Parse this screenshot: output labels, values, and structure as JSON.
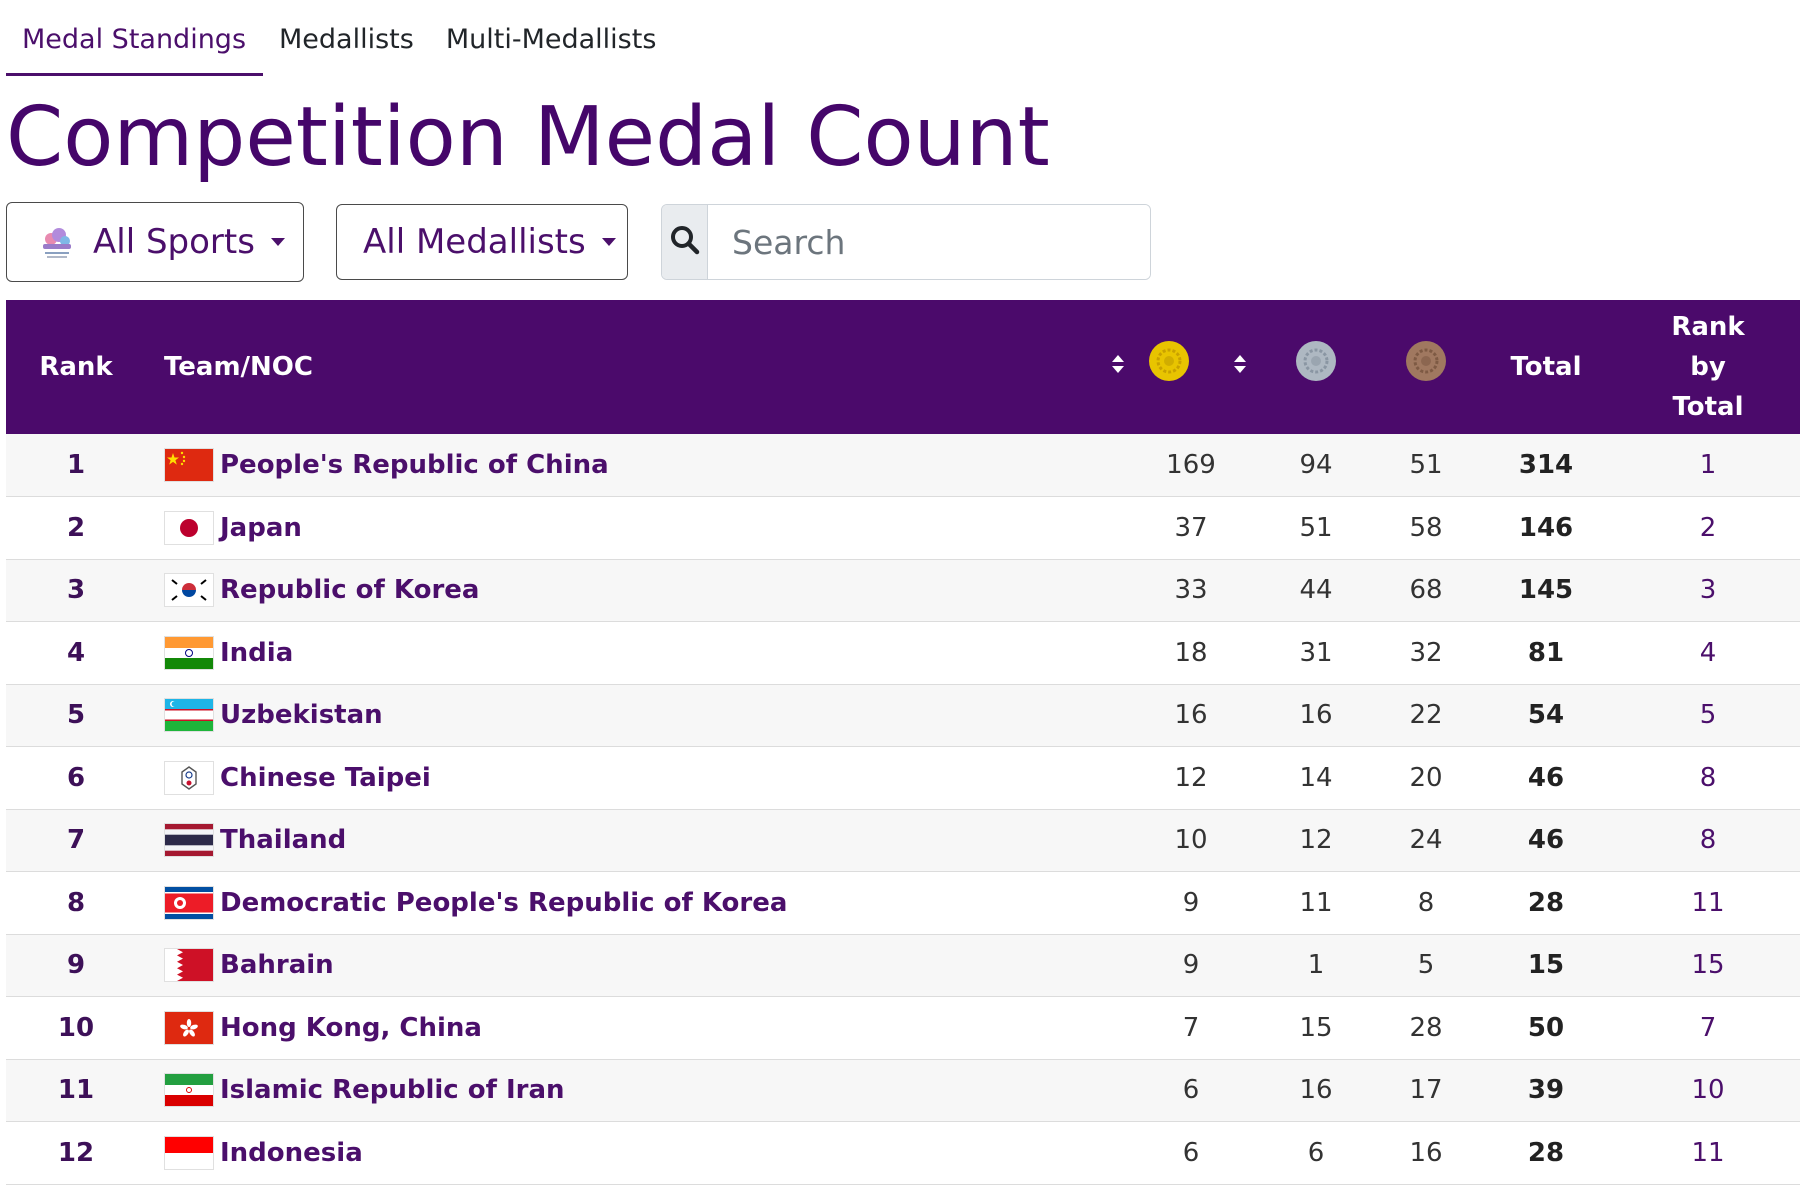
{
  "tabs": [
    {
      "label": "Medal Standings",
      "active": true
    },
    {
      "label": "Medallists",
      "active": false
    },
    {
      "label": "Multi-Medallists",
      "active": false
    }
  ],
  "title": "Competition Medal Count",
  "filters": {
    "sports_label": "All Sports",
    "sports_icon": "games-logo-icon",
    "medallists_label": "All Medallists",
    "search_placeholder": "Search",
    "search_value": ""
  },
  "table": {
    "headers": {
      "rank": "Rank",
      "team": "Team/NOC",
      "gold_icon": "gold-medal-icon",
      "silver_icon": "silver-medal-icon",
      "bronze_icon": "bronze-medal-icon",
      "total": "Total",
      "rank_by_total": [
        "Rank",
        "by",
        "Total"
      ]
    },
    "rows": [
      {
        "rank": "1",
        "team": "People's Republic of China",
        "flag": "china-flag-icon",
        "gold": "169",
        "silver": "94",
        "bronze": "51",
        "total": "314",
        "rank_by_total": "1"
      },
      {
        "rank": "2",
        "team": "Japan",
        "flag": "japan-flag-icon",
        "gold": "37",
        "silver": "51",
        "bronze": "58",
        "total": "146",
        "rank_by_total": "2"
      },
      {
        "rank": "3",
        "team": "Republic of Korea",
        "flag": "korea-flag-icon",
        "gold": "33",
        "silver": "44",
        "bronze": "68",
        "total": "145",
        "rank_by_total": "3"
      },
      {
        "rank": "4",
        "team": "India",
        "flag": "india-flag-icon",
        "gold": "18",
        "silver": "31",
        "bronze": "32",
        "total": "81",
        "rank_by_total": "4"
      },
      {
        "rank": "5",
        "team": "Uzbekistan",
        "flag": "uzbekistan-flag-icon",
        "gold": "16",
        "silver": "16",
        "bronze": "22",
        "total": "54",
        "rank_by_total": "5"
      },
      {
        "rank": "6",
        "team": "Chinese Taipei",
        "flag": "chinese-taipei-flag-icon",
        "gold": "12",
        "silver": "14",
        "bronze": "20",
        "total": "46",
        "rank_by_total": "8"
      },
      {
        "rank": "7",
        "team": "Thailand",
        "flag": "thailand-flag-icon",
        "gold": "10",
        "silver": "12",
        "bronze": "24",
        "total": "46",
        "rank_by_total": "8"
      },
      {
        "rank": "8",
        "team": "Democratic People's Republic of Korea",
        "flag": "dpr-korea-flag-icon",
        "gold": "9",
        "silver": "11",
        "bronze": "8",
        "total": "28",
        "rank_by_total": "11"
      },
      {
        "rank": "9",
        "team": "Bahrain",
        "flag": "bahrain-flag-icon",
        "gold": "9",
        "silver": "1",
        "bronze": "5",
        "total": "15",
        "rank_by_total": "15"
      },
      {
        "rank": "10",
        "team": "Hong Kong, China",
        "flag": "hong-kong-flag-icon",
        "gold": "7",
        "silver": "15",
        "bronze": "28",
        "total": "50",
        "rank_by_total": "7"
      },
      {
        "rank": "11",
        "team": "Islamic Republic of Iran",
        "flag": "iran-flag-icon",
        "gold": "6",
        "silver": "16",
        "bronze": "17",
        "total": "39",
        "rank_by_total": "10"
      },
      {
        "rank": "12",
        "team": "Indonesia",
        "flag": "indonesia-flag-icon",
        "gold": "6",
        "silver": "6",
        "bronze": "16",
        "total": "28",
        "rank_by_total": "11"
      }
    ]
  },
  "colors": {
    "brand_purple": "#4b0a6b",
    "title_purple": "#45066a",
    "gold": "#e8c400",
    "silver": "#aeb8c2",
    "bronze": "#a07860"
  }
}
